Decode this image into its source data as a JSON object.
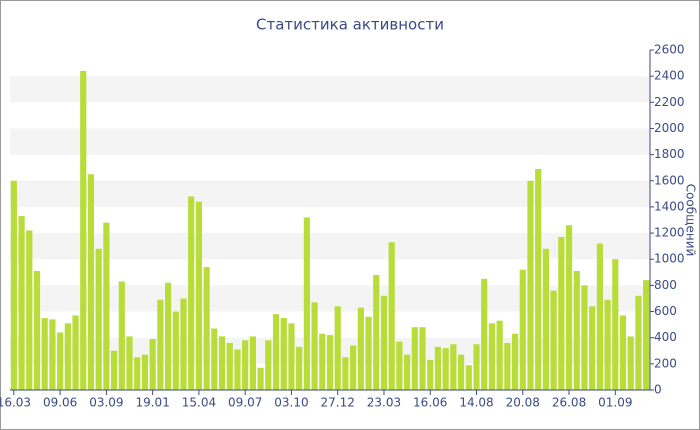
{
  "chart_data": {
    "type": "bar",
    "title": "Статистика активности",
    "y_label": "Сообщений",
    "categories": [
      "16.03",
      null,
      null,
      null,
      null,
      null,
      "09.06",
      null,
      null,
      null,
      null,
      null,
      "03.09",
      null,
      null,
      null,
      null,
      null,
      "19.01",
      null,
      null,
      null,
      null,
      null,
      "15.04",
      null,
      null,
      null,
      null,
      null,
      "09.07",
      null,
      null,
      null,
      null,
      null,
      "03.10",
      null,
      null,
      null,
      null,
      null,
      "27.12",
      null,
      null,
      null,
      null,
      null,
      "23.03",
      null,
      null,
      null,
      null,
      null,
      "16.06",
      null,
      null,
      null,
      null,
      null,
      "14.08",
      null,
      null,
      null,
      null,
      null,
      "20.08",
      null,
      null,
      null,
      null,
      null,
      "26.08",
      null,
      null,
      null,
      null,
      null,
      "01.09",
      null,
      null,
      null,
      null
    ],
    "values": [
      1600,
      1330,
      1220,
      910,
      550,
      540,
      440,
      510,
      570,
      2440,
      1650,
      1080,
      1280,
      300,
      830,
      410,
      250,
      270,
      390,
      690,
      820,
      600,
      700,
      1480,
      1440,
      940,
      470,
      410,
      360,
      310,
      380,
      410,
      170,
      380,
      580,
      550,
      510,
      330,
      1320,
      670,
      430,
      420,
      640,
      250,
      340,
      630,
      560,
      880,
      720,
      1130,
      370,
      270,
      480,
      480,
      230,
      330,
      320,
      350,
      270,
      190,
      350,
      850,
      510,
      530,
      360,
      430,
      920,
      1600,
      1690,
      1080,
      760,
      1170,
      1260,
      910,
      800,
      640,
      1120,
      690,
      1000,
      570,
      410,
      720,
      840
    ],
    "color": "#b8dc38",
    "ylim": [
      0,
      2600
    ],
    "yticks": [
      0,
      200,
      400,
      600,
      800,
      1000,
      1200,
      1400,
      1600,
      1800,
      2000,
      2200,
      2400,
      2600
    ],
    "grid": "bands",
    "y_axis_side": "right"
  }
}
